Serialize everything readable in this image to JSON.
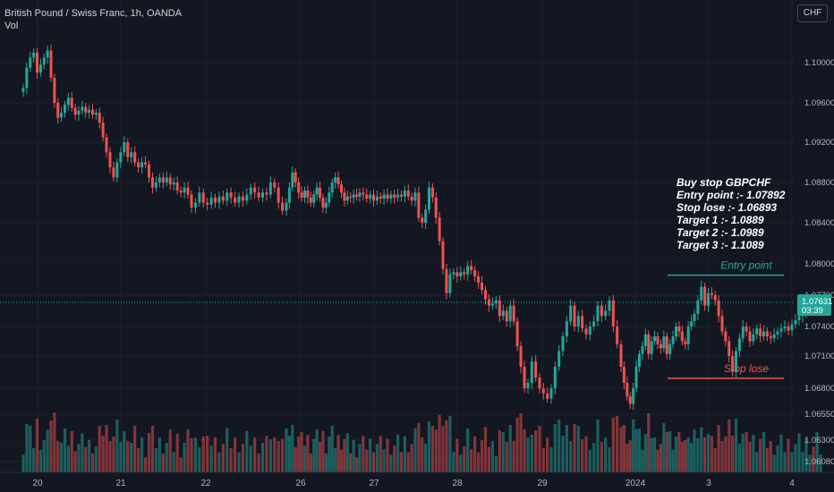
{
  "header": {
    "title": "British Pound / Swiss Franc, 1h, OANDA",
    "volume_label": "Vol",
    "currency": "CHF"
  },
  "colors": {
    "background": "#131722",
    "grid": "#1e222d",
    "bull": "#26a69a",
    "bear": "#ef5350",
    "entry_line": "#26a69a",
    "stop_line": "#ef5350",
    "price_badge": "#26a69a"
  },
  "chart_data": {
    "type": "candlestick",
    "y_ticks": [
      "1.10000",
      "1.09600",
      "1.09200",
      "1.08800",
      "1.08400",
      "1.08000",
      "1.07700",
      "1.07400",
      "1.07100",
      "1.06800",
      "1.06550",
      "1.06300",
      "1.06080"
    ],
    "x_ticks": [
      "20",
      "21",
      "22",
      "26",
      "27",
      "28",
      "29",
      "2024",
      "3",
      "4"
    ],
    "current_price": "1.07631",
    "countdown": "03:39",
    "annotation_lines": [
      "Buy stop GBPCHF",
      "Entry point :- 1.07892",
      "Stop lose :- 1.06893",
      "Target 1 :- 1.0889",
      "Target 2 :- 1.0989",
      "Target 3 :- 1.1089"
    ],
    "levels": [
      {
        "label": "Entry point",
        "price": 1.07892,
        "color": "#26a69a"
      },
      {
        "label": "Stop lose",
        "price": 1.06893,
        "color": "#ef5350"
      }
    ],
    "series": [
      {
        "day": "20",
        "close": [
          1.0975,
          1.0995,
          1.1005,
          1.101,
          1.099,
          1.0998,
          1.1005,
          1.1012,
          1.0985,
          1.096,
          1.0945,
          1.095,
          1.0958,
          1.0965,
          1.0955,
          1.0948,
          1.0952,
          1.0956,
          1.095,
          1.0953,
          1.0948,
          1.095,
          1.094,
          1.0925
        ]
      },
      {
        "day": "21",
        "close": [
          1.091,
          1.0895,
          1.0885,
          1.09,
          1.091,
          1.092,
          1.0905,
          1.091,
          1.09,
          1.0895,
          1.09,
          1.0898,
          1.0885,
          1.0875,
          1.088,
          1.0885,
          1.088,
          1.0885,
          1.0878,
          1.088,
          1.0872,
          1.087,
          1.0875,
          1.0868
        ]
      },
      {
        "day": "22",
        "close": [
          1.0855,
          1.086,
          1.087,
          1.086,
          1.0858,
          1.0865,
          1.086,
          1.0866,
          1.0862,
          1.087,
          1.0865,
          1.086,
          1.0866,
          1.0862,
          1.0868,
          1.0875,
          1.087,
          1.0865,
          1.087,
          1.0868,
          1.088,
          1.0875,
          1.086,
          1.0852
        ]
      },
      {
        "day": "26",
        "close": [
          1.086,
          1.0875,
          1.089,
          1.088,
          1.087,
          1.0865,
          1.0872,
          1.0865,
          1.086,
          1.0868,
          1.0875,
          1.0865,
          1.0855,
          1.086,
          1.087,
          1.088,
          1.0885,
          1.0878,
          1.087,
          1.0862,
          1.0866,
          1.0865,
          1.0868,
          1.0866
        ]
      },
      {
        "day": "27",
        "close": [
          1.087,
          1.0868,
          1.0864,
          1.0868,
          1.0862,
          1.0866,
          1.0864,
          1.0868,
          1.0864,
          1.0868,
          1.0865,
          1.0868,
          1.0866,
          1.0872,
          1.0866,
          1.0862,
          1.087,
          1.0845,
          1.084,
          1.0853,
          1.0875,
          1.0865,
          1.0845,
          1.0822
        ]
      },
      {
        "day": "28",
        "close": [
          1.0795,
          1.0772,
          1.079,
          1.0792,
          1.0788,
          1.0792,
          1.079,
          1.0798,
          1.0794,
          1.0788,
          1.0782,
          1.0775,
          1.0766,
          1.076,
          1.0762,
          1.0765,
          1.075,
          1.0755,
          1.0745,
          1.076,
          1.0745,
          1.072,
          1.07,
          1.068
        ]
      },
      {
        "day": "29",
        "close": [
          1.0685,
          1.0705,
          1.069,
          1.068,
          1.0675,
          1.067,
          1.068,
          1.07,
          1.0715,
          1.073,
          1.0745,
          1.076,
          1.074,
          1.075,
          1.0738,
          1.0732,
          1.074,
          1.0745,
          1.076,
          1.075,
          1.0755,
          1.0765,
          1.074,
          1.0722
        ]
      },
      {
        "day": "2024",
        "close": [
          1.07,
          1.0685,
          1.0672,
          1.0665,
          1.068,
          1.07,
          1.0712,
          1.072,
          1.0732,
          1.0712,
          1.0725,
          1.073,
          1.0722,
          1.0718,
          1.073,
          1.0712,
          1.0722,
          1.073,
          1.074,
          1.0735,
          1.0725,
          1.0722,
          1.074,
          1.0745
        ]
      },
      {
        "day": "3",
        "close": [
          1.0752,
          1.0765,
          1.0778,
          1.076,
          1.0772,
          1.077,
          1.0765,
          1.075,
          1.0735,
          1.0725,
          1.071,
          1.0695,
          1.0715,
          1.0728,
          1.074,
          1.0735,
          1.0725,
          1.0732,
          1.0738,
          1.073,
          1.0735,
          1.073,
          1.0728,
          1.0732
        ]
      },
      {
        "day": "4",
        "close": [
          1.0735,
          1.0738,
          1.074,
          1.0736,
          1.0742,
          1.0746,
          1.075,
          1.0752,
          1.0756,
          1.076,
          1.0758,
          1.0763,
          1.0763
        ]
      }
    ]
  }
}
